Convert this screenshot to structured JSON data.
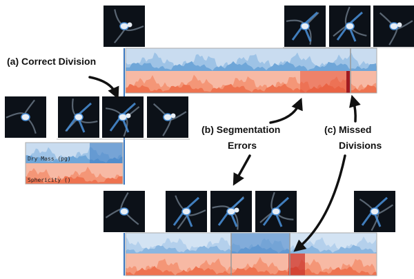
{
  "annotations": {
    "correct_division": "(a) Correct Division",
    "segmentation_errors": [
      "(b) Segmentation",
      "Errors"
    ],
    "missed_divisions": [
      "(c) Missed",
      "Divisions"
    ]
  },
  "track_labels": [
    "Dry Mass (pg)",
    "Sphericity ()"
  ]
}
